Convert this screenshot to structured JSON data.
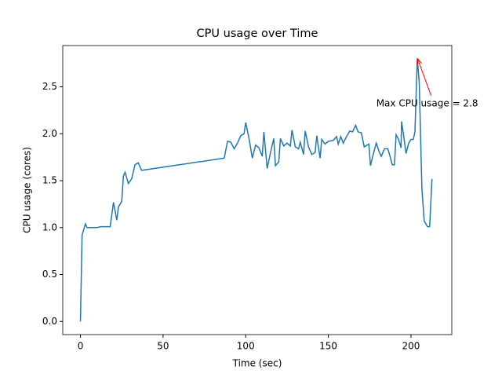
{
  "chart_data": {
    "type": "line",
    "title": "CPU usage over Time",
    "x_label": "Time (sec)",
    "y_label": "CPU usage (cores)",
    "x": [
      0,
      1,
      3,
      4,
      6,
      8,
      10,
      12,
      14,
      16,
      18,
      20,
      22,
      23,
      25,
      26,
      27,
      29,
      31,
      33,
      35,
      37,
      87,
      89,
      91,
      93,
      95,
      97,
      99,
      100,
      102,
      104,
      106,
      108,
      110,
      111,
      113,
      115,
      117,
      118,
      120,
      121,
      123,
      125,
      127,
      128,
      130,
      132,
      133,
      135,
      136,
      138,
      140,
      142,
      143,
      145,
      146,
      148,
      150,
      153,
      155,
      156,
      157.5,
      159,
      161,
      163,
      164.6,
      166.5,
      168,
      170,
      171.7,
      173.6,
      174.5,
      175.5,
      177,
      179,
      180.7,
      182,
      184,
      186,
      187,
      188.7,
      190,
      191,
      192.5,
      194,
      194.3,
      195.8,
      197,
      198.6,
      200,
      201.4,
      202.4,
      203.8,
      205,
      206.6,
      208,
      210,
      211.3,
      212.7
    ],
    "series": [
      {
        "name": "CPU usage",
        "color": "#1f77b4",
        "values": [
          0,
          0.92,
          1.04,
          1.0,
          1.0,
          1.0,
          1.0,
          1.01,
          1.01,
          1.01,
          1.01,
          1.27,
          1.08,
          1.22,
          1.28,
          1.55,
          1.59,
          1.47,
          1.52,
          1.67,
          1.69,
          1.61,
          1.74,
          1.92,
          1.91,
          1.84,
          1.9,
          1.98,
          2.0,
          2.12,
          1.95,
          1.74,
          1.88,
          1.85,
          1.76,
          2.02,
          1.63,
          1.8,
          1.95,
          1.66,
          1.7,
          1.95,
          1.87,
          1.9,
          1.87,
          2.04,
          1.86,
          1.84,
          1.91,
          1.78,
          2.03,
          1.86,
          1.78,
          1.8,
          1.98,
          1.74,
          1.94,
          1.89,
          1.92,
          1.93,
          1.97,
          1.89,
          1.97,
          1.9,
          1.97,
          2.03,
          2.02,
          2.09,
          2.02,
          2.01,
          1.86,
          1.88,
          1.89,
          1.66,
          1.77,
          1.9,
          1.81,
          1.76,
          1.84,
          1.84,
          1.78,
          1.67,
          1.67,
          1.99,
          1.94,
          1.85,
          2.13,
          1.95,
          1.79,
          1.9,
          1.94,
          1.94,
          2.02,
          2.8,
          2.55,
          1.42,
          1.07,
          1.01,
          1.01,
          1.52
        ]
      }
    ],
    "annotation": {
      "text": "Max CPU usage = 2.8",
      "xy": [
        204,
        2.8
      ],
      "xytext": [
        179,
        2.32
      ],
      "color": "red"
    },
    "xlim": [
      -10.7,
      224.7
    ],
    "ylim": [
      -0.14,
      2.94
    ],
    "xticks": [
      0,
      50,
      100,
      150,
      200
    ],
    "yticks": [
      {
        "value": 0,
        "label": "0.0"
      },
      0.5,
      {
        "value": 1,
        "label": "1.0"
      },
      1.5,
      {
        "value": 2,
        "label": "2.0"
      },
      2.5
    ]
  }
}
